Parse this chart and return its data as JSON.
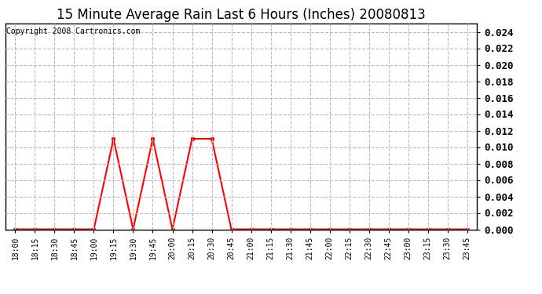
{
  "title": "15 Minute Average Rain Last 6 Hours (Inches) 20080813",
  "copyright_text": "Copyright 2008 Cartronics.com",
  "x_labels": [
    "18:00",
    "18:15",
    "18:30",
    "18:45",
    "19:00",
    "19:15",
    "19:30",
    "19:45",
    "20:00",
    "20:15",
    "20:30",
    "20:45",
    "21:00",
    "21:15",
    "21:30",
    "21:45",
    "22:00",
    "22:15",
    "22:30",
    "22:45",
    "23:00",
    "23:15",
    "23:30",
    "23:45"
  ],
  "y_values": [
    0.0,
    0.0,
    0.0,
    0.0,
    0.0,
    0.011,
    0.0,
    0.011,
    0.0,
    0.011,
    0.011,
    0.0,
    0.0,
    0.0,
    0.0,
    0.0,
    0.0,
    0.0,
    0.0,
    0.0,
    0.0,
    0.0,
    0.0,
    0.0
  ],
  "line_color": "#ff0000",
  "marker": "s",
  "marker_size": 3,
  "ylim": [
    0.0,
    0.025
  ],
  "yticks": [
    0.0,
    0.002,
    0.004,
    0.006,
    0.008,
    0.01,
    0.012,
    0.014,
    0.016,
    0.018,
    0.02,
    0.022,
    0.024
  ],
  "grid_color": "#bbbbbb",
  "grid_style": "--",
  "background_color": "#ffffff",
  "title_fontsize": 12,
  "copyright_fontsize": 7,
  "tick_fontsize": 7,
  "ytick_fontsize": 9
}
